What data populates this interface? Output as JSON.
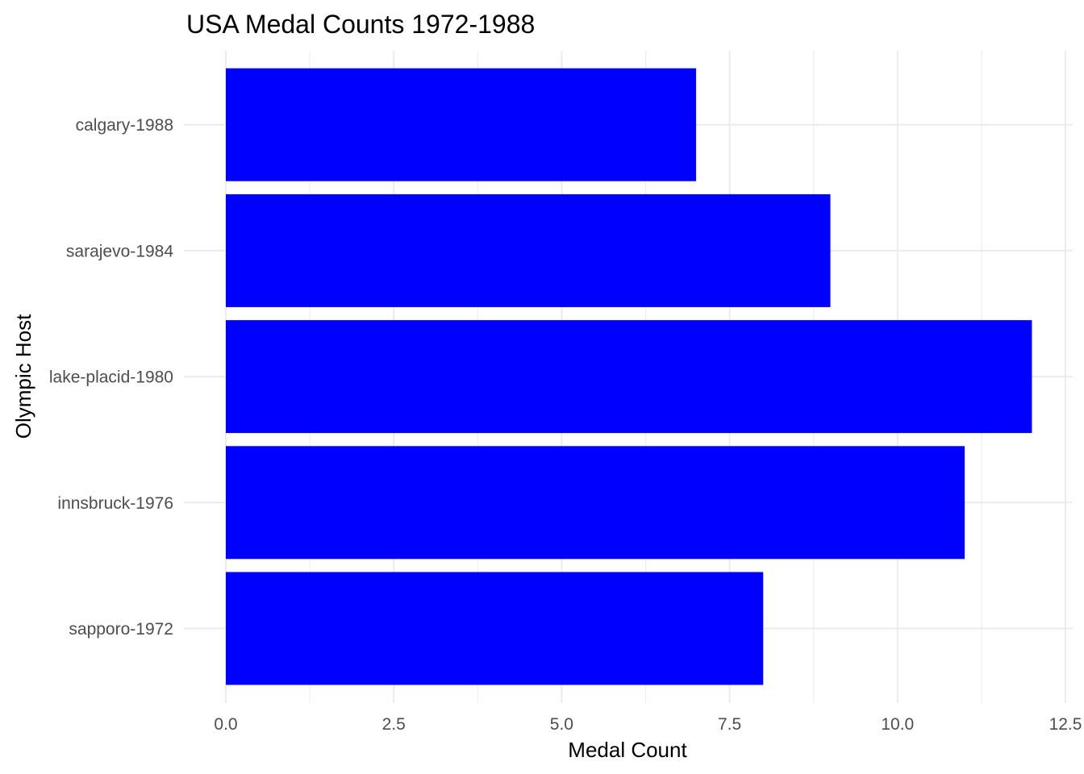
{
  "chart_data": {
    "type": "bar",
    "orientation": "horizontal",
    "title": "USA Medal Counts 1972-1988",
    "xlabel": "Medal Count",
    "ylabel": "Olympic Host",
    "categories": [
      "sapporo-1972",
      "innsbruck-1976",
      "lake-placid-1980",
      "sarajevo-1984",
      "calgary-1988"
    ],
    "values": [
      8,
      11,
      12,
      9,
      7
    ],
    "xlim": [
      0,
      12.5
    ],
    "x_ticks": [
      "0.0",
      "2.5",
      "5.0",
      "7.5",
      "10.0",
      "12.5"
    ],
    "x_tick_values": [
      0,
      2.5,
      5,
      7.5,
      10,
      12.5
    ],
    "bar_color": "#0000ff",
    "grid": true,
    "legend": "none"
  }
}
